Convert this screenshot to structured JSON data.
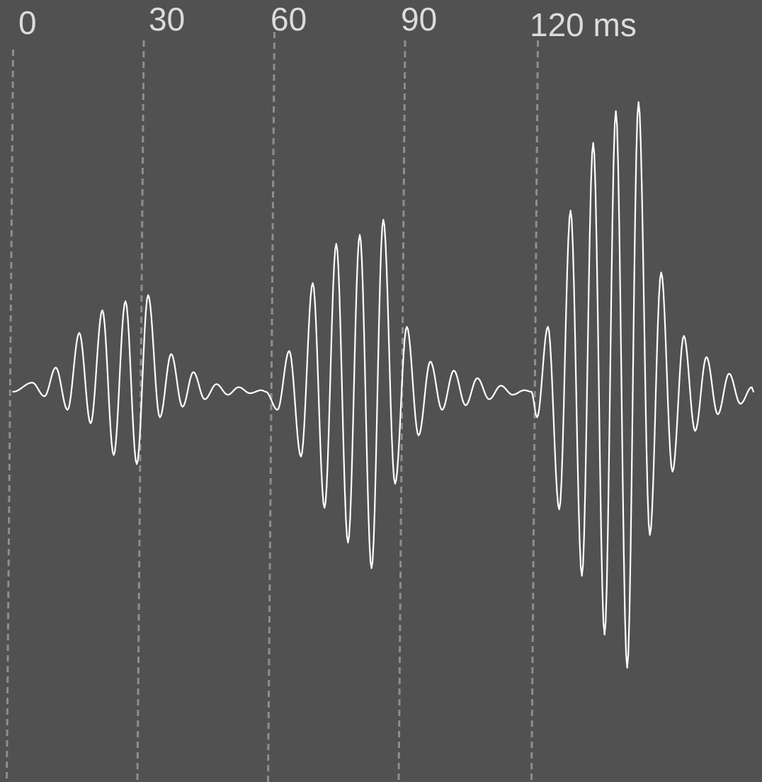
{
  "chart_data": {
    "type": "line",
    "title": "",
    "xlabel": "",
    "ylabel": "",
    "x_unit": "ms",
    "xlim": [
      0,
      170
    ],
    "ylim": [
      -1.1,
      1.1
    ],
    "grid": true,
    "tick_values": [
      0,
      30,
      60,
      90,
      120
    ],
    "tick_labels": [
      "0",
      "30",
      "60",
      "90",
      "120 ms"
    ],
    "series": [
      {
        "samples_per_ms": 4,
        "x": [
          0,
          170
        ],
        "bursts": [
          {
            "start_ms": 0,
            "end_ms": 58,
            "peaks": [
              {
                "t": 4.4,
                "y": 0.06
              },
              {
                "t": 7.2,
                "y": -0.03
              },
              {
                "t": 9.8,
                "y": 0.16
              },
              {
                "t": 12.5,
                "y": -0.12
              },
              {
                "t": 15.2,
                "y": 0.39
              },
              {
                "t": 17.8,
                "y": -0.21
              },
              {
                "t": 20.5,
                "y": 0.54
              },
              {
                "t": 23.1,
                "y": -0.42
              },
              {
                "t": 25.8,
                "y": 0.6
              },
              {
                "t": 28.4,
                "y": -0.48
              },
              {
                "t": 31.0,
                "y": 0.64
              },
              {
                "t": 33.7,
                "y": -0.17
              },
              {
                "t": 36.3,
                "y": 0.25
              },
              {
                "t": 38.9,
                "y": -0.1
              },
              {
                "t": 41.4,
                "y": 0.13
              },
              {
                "t": 44.0,
                "y": -0.05
              },
              {
                "t": 46.7,
                "y": 0.05
              },
              {
                "t": 49.3,
                "y": -0.02
              },
              {
                "t": 51.8,
                "y": 0.03
              },
              {
                "t": 54.4,
                "y": -0.01
              },
              {
                "t": 57.0,
                "y": 0.01
              }
            ]
          },
          {
            "start_ms": 58,
            "end_ms": 119,
            "peaks": [
              {
                "t": 60.7,
                "y": -0.12
              },
              {
                "t": 63.4,
                "y": 0.27
              },
              {
                "t": 66.1,
                "y": -0.43
              },
              {
                "t": 68.8,
                "y": 0.72
              },
              {
                "t": 71.5,
                "y": -0.77
              },
              {
                "t": 74.2,
                "y": 0.98
              },
              {
                "t": 76.9,
                "y": -1.0
              },
              {
                "t": 79.6,
                "y": 1.04
              },
              {
                "t": 82.3,
                "y": -1.17
              },
              {
                "t": 85.0,
                "y": 1.14
              },
              {
                "t": 87.7,
                "y": -0.61
              },
              {
                "t": 90.4,
                "y": 0.43
              },
              {
                "t": 93.1,
                "y": -0.29
              },
              {
                "t": 95.8,
                "y": 0.2
              },
              {
                "t": 98.5,
                "y": -0.12
              },
              {
                "t": 101.2,
                "y": 0.14
              },
              {
                "t": 103.9,
                "y": -0.09
              },
              {
                "t": 106.6,
                "y": 0.09
              },
              {
                "t": 109.3,
                "y": -0.05
              },
              {
                "t": 112.0,
                "y": 0.04
              },
              {
                "t": 114.7,
                "y": -0.02
              },
              {
                "t": 117.4,
                "y": 0.01
              }
            ]
          },
          {
            "start_ms": 119,
            "end_ms": 170,
            "peaks": [
              {
                "t": 120.3,
                "y": -0.17
              },
              {
                "t": 122.8,
                "y": 0.43
              },
              {
                "t": 125.4,
                "y": -0.78
              },
              {
                "t": 128.0,
                "y": 1.2
              },
              {
                "t": 130.6,
                "y": -1.22
              },
              {
                "t": 133.2,
                "y": 1.65
              },
              {
                "t": 135.8,
                "y": -1.61
              },
              {
                "t": 138.4,
                "y": 1.86
              },
              {
                "t": 141.0,
                "y": -1.83
              },
              {
                "t": 143.6,
                "y": 1.92
              },
              {
                "t": 146.2,
                "y": -0.95
              },
              {
                "t": 148.8,
                "y": 0.79
              },
              {
                "t": 151.4,
                "y": -0.53
              },
              {
                "t": 154.0,
                "y": 0.37
              },
              {
                "t": 156.6,
                "y": -0.26
              },
              {
                "t": 159.2,
                "y": 0.23
              },
              {
                "t": 161.8,
                "y": -0.15
              },
              {
                "t": 164.4,
                "y": 0.12
              },
              {
                "t": 167.0,
                "y": -0.08
              },
              {
                "t": 169.6,
                "y": 0.03
              }
            ]
          }
        ]
      }
    ]
  },
  "colors": {
    "background": "#515151",
    "wave": "#ffffff",
    "grid": "#8e8e8e",
    "labels": "#dcdcdc"
  }
}
